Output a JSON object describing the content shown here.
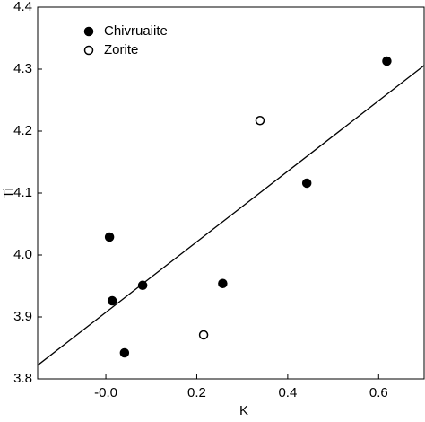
{
  "chart_data": {
    "type": "scatter",
    "x_label": "K",
    "y_label": "Ti",
    "xlim": [
      -0.15,
      0.7
    ],
    "ylim": [
      3.8,
      4.4
    ],
    "xticks": [
      {
        "value": 0,
        "label": "-0.0"
      },
      0.2,
      0.4,
      0.6
    ],
    "yticks": [
      {
        "value": 3.8,
        "label": "3.8"
      },
      {
        "value": 3.9,
        "label": "3.9"
      },
      {
        "value": 4.0,
        "label": "4.0"
      },
      {
        "value": 4.1,
        "label": "4.1"
      },
      {
        "value": 4.2,
        "label": "4.2"
      },
      {
        "value": 4.3,
        "label": "4.3"
      },
      {
        "value": 4.4,
        "label": "4.4"
      }
    ],
    "legend_position": "upper left",
    "series": [
      {
        "name": "Chivruaiite",
        "color": "#000000",
        "marker": "filled",
        "x": [
          0.618,
          0.442,
          0.008,
          0.014,
          0.081,
          0.257,
          0.041
        ],
        "y": [
          4.313,
          4.116,
          4.029,
          3.926,
          3.951,
          3.954,
          3.842
        ]
      },
      {
        "name": "Zorite",
        "color": "#000000",
        "marker": "open",
        "x": [
          0.339,
          0.215
        ],
        "y": [
          4.217,
          3.871
        ]
      }
    ],
    "fit_line": {
      "x": [
        -0.15,
        0.7
      ],
      "y": [
        3.822,
        4.306
      ],
      "color": "#000000"
    }
  }
}
